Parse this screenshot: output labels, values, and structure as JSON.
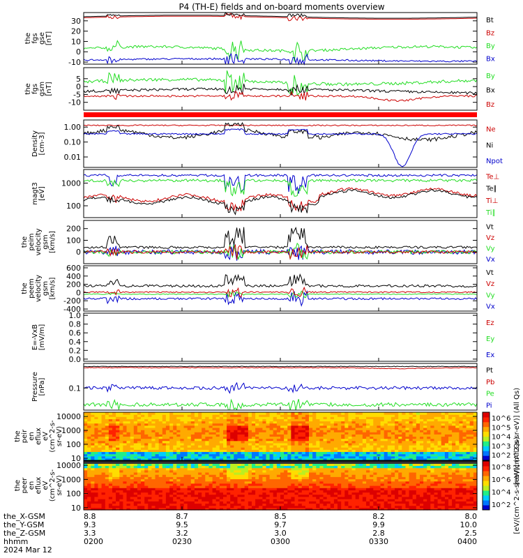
{
  "title": "P4 (TH-E) fields and on-board moments overview",
  "colors": {
    "black": "#000000",
    "red": "#cc0000",
    "green": "#22dd22",
    "blue": "#0000cc",
    "gray": "#aaaaaa"
  },
  "panels": [
    {
      "id": "fgs-gse",
      "ylabel": [
        "the",
        "fgs",
        "gse",
        "[nT]"
      ],
      "ylim": [
        -12,
        38
      ],
      "yticks": [
        "30",
        "20",
        "10",
        "0",
        "-10"
      ],
      "ytick_values": [
        30,
        20,
        10,
        0,
        -10
      ],
      "legend": [
        {
          "name": "Bt",
          "color": "black"
        },
        {
          "name": "Bz",
          "color": "red"
        },
        {
          "name": "By",
          "color": "green"
        },
        {
          "name": "Bx",
          "color": "blue"
        }
      ]
    },
    {
      "id": "fgs-gsm",
      "ylabel": [
        "the",
        "fgs",
        "gsm",
        "[nT]"
      ],
      "ylim": [
        -15,
        12
      ],
      "yticks": [
        "5",
        "0",
        "-5",
        "-10"
      ],
      "ytick_values": [
        5,
        0,
        -5,
        -10
      ],
      "legend": [
        {
          "name": "By",
          "color": "green"
        },
        {
          "name": "Bx",
          "color": "black"
        },
        {
          "name": "Bz",
          "color": "red"
        }
      ]
    },
    {
      "id": "bar",
      "ylabel": [],
      "ylim": [
        0,
        1
      ],
      "yticks": [],
      "ytick_values": [],
      "legend": []
    },
    {
      "id": "density",
      "ylabel": [
        "Density",
        "[cm-3]"
      ],
      "log": true,
      "ylim": [
        0.002,
        3
      ],
      "yticks": [
        "1.00",
        "0.10",
        "0.01"
      ],
      "ytick_values": [
        1,
        0.1,
        0.01
      ],
      "legend": [
        {
          "name": "Ne",
          "color": "red"
        },
        {
          "name": "Ni",
          "color": "black"
        },
        {
          "name": "Npot",
          "color": "blue"
        }
      ]
    },
    {
      "id": "temp",
      "ylabel": [
        "magt3",
        "[eV]"
      ],
      "log": true,
      "ylim": [
        30,
        4000
      ],
      "yticks": [
        "1000",
        "100"
      ],
      "ytick_values": [
        1000,
        100
      ],
      "legend": [
        {
          "name": "Te⊥",
          "color": "red"
        },
        {
          "name": "Te∥",
          "color": "black"
        },
        {
          "name": "Ti⊥",
          "color": "red"
        },
        {
          "name": "Ti∥",
          "color": "green"
        }
      ]
    },
    {
      "id": "peim",
      "ylabel": [
        "the",
        "peim",
        "velocity",
        "gsm",
        "[km/s]"
      ],
      "ylim": [
        -100,
        270
      ],
      "yticks": [
        "200",
        "100",
        "0"
      ],
      "ytick_values": [
        200,
        100,
        0
      ],
      "legend": [
        {
          "name": "Vt",
          "color": "black"
        },
        {
          "name": "Vz",
          "color": "red"
        },
        {
          "name": "Vy",
          "color": "green"
        },
        {
          "name": "Vx",
          "color": "blue"
        }
      ]
    },
    {
      "id": "peem",
      "ylabel": [
        "the",
        "peem",
        "velocity",
        "gsm",
        "[km/s]"
      ],
      "ylim": [
        -450,
        650
      ],
      "yticks": [
        "600",
        "400",
        "200",
        "0",
        "-200",
        "-400"
      ],
      "ytick_values": [
        600,
        400,
        200,
        0,
        -200,
        -400
      ],
      "legend": [
        {
          "name": "Vt",
          "color": "black"
        },
        {
          "name": "Vz",
          "color": "red"
        },
        {
          "name": "Vy",
          "color": "green"
        },
        {
          "name": "Vx",
          "color": "blue"
        }
      ]
    },
    {
      "id": "efield",
      "ylabel": [
        "E=-VxB",
        "[mV/m]"
      ],
      "ylim": [
        -0.05,
        1.05
      ],
      "yticks": [
        "1.0",
        "0.8",
        "0.6",
        "0.4",
        "0.2",
        "0.0"
      ],
      "ytick_values": [
        1,
        0.8,
        0.6,
        0.4,
        0.2,
        0
      ],
      "legend": [
        {
          "name": "Ez",
          "color": "red"
        },
        {
          "name": "Ey",
          "color": "green"
        },
        {
          "name": "Ex",
          "color": "blue"
        }
      ]
    },
    {
      "id": "pressure",
      "ylabel": [
        "Pressure",
        "[nPa]"
      ],
      "log": true,
      "ylim": [
        0.02,
        0.6
      ],
      "yticks": [
        "0.1"
      ],
      "ytick_values": [
        0.1
      ],
      "legend": [
        {
          "name": "Pt",
          "color": "black"
        },
        {
          "name": "Pb",
          "color": "red"
        },
        {
          "name": "Pe",
          "color": "green"
        },
        {
          "name": "Pi",
          "color": "blue"
        }
      ]
    },
    {
      "id": "peir",
      "ylabel": [
        "the",
        "peir",
        "en",
        "eflux",
        "eV",
        "(cm^2-s-",
        "sr-eV)"
      ],
      "log": true,
      "ylim": [
        7,
        20000
      ],
      "yticks": [
        "10000",
        "1000",
        "100",
        "10"
      ],
      "ytick_values": [
        10000,
        1000,
        100,
        10
      ],
      "legend": []
    },
    {
      "id": "peer",
      "ylabel": [
        "the",
        "peer",
        "en",
        "eflux",
        "eV",
        "(cm^2-s-",
        "sr-eV)"
      ],
      "log": true,
      "ylim": [
        7,
        20000
      ],
      "yticks": [
        "10000",
        "1000",
        "100",
        "10"
      ],
      "ytick_values": [
        10000,
        1000,
        100,
        10
      ],
      "legend": []
    }
  ],
  "colorbar_top": {
    "labels": [
      "10^6",
      "10^5",
      "10^4",
      "10^3",
      "10^2"
    ],
    "title": "[eV/(cm^2-s-sr-eV)] (All Qs)"
  },
  "colorbar_bottom": {
    "labels": [
      "10^8",
      "10^6",
      "10^4",
      "10^2"
    ],
    "title": "[eV/(cm^2-s-sr-eV)] (All Qs)"
  },
  "xaxis": {
    "row_labels": [
      "the_X-GSM",
      "the_Y-GSM",
      "the_Z-GSM",
      "hhmm",
      "2024 Mar 12"
    ],
    "ticks": [
      {
        "x": "8.8",
        "y": "9.3",
        "z": "3.3",
        "t": "0200"
      },
      {
        "x": "8.7",
        "y": "9.5",
        "z": "3.2",
        "t": "0230"
      },
      {
        "x": "8.5",
        "y": "9.7",
        "z": "3.0",
        "t": "0300"
      },
      {
        "x": "8.2",
        "y": "9.9",
        "z": "2.8",
        "t": "0330"
      },
      {
        "x": "8.0",
        "y": "10.0",
        "z": "2.5",
        "t": "0400"
      }
    ]
  },
  "chart_data": [
    {
      "type": "line",
      "panel": "fgs-gse",
      "x_range": [
        "02:00",
        "04:00"
      ],
      "series": [
        {
          "name": "Bt",
          "approx": "~33 nT steady"
        },
        {
          "name": "Bz",
          "approx": "~33 nT"
        },
        {
          "name": "By",
          "approx": "~3-5 nT, spikes to 15 near 03:00"
        },
        {
          "name": "Bx",
          "approx": "~-8 nT"
        }
      ]
    },
    {
      "type": "line",
      "panel": "fgs-gsm",
      "series": [
        {
          "name": "By",
          "approx": "~4 nT"
        },
        {
          "name": "Bx",
          "approx": "~-3 nT"
        },
        {
          "name": "Bz",
          "approx": "~-6 nT, dips to -11 near 03:40"
        }
      ]
    },
    {
      "type": "line",
      "panel": "density",
      "log": true,
      "series": [
        {
          "name": "Ne",
          "approx": "~1.2"
        },
        {
          "name": "Ni",
          "approx": "~0.2-1.0"
        },
        {
          "name": "Npot",
          "approx": "~0.3, drops to 0.003 near 03:30"
        }
      ]
    },
    {
      "type": "line",
      "panel": "temp",
      "log": true,
      "series": [
        {
          "name": "Te⊥",
          "approx": "~1800 eV"
        },
        {
          "name": "Ti∥",
          "approx": "~1200 eV"
        },
        {
          "name": "Te∥",
          "approx": "~150-500 eV"
        },
        {
          "name": "Ti⊥",
          "approx": "~150-500 eV"
        }
      ]
    },
    {
      "type": "line",
      "panel": "peim",
      "series": [
        {
          "name": "Vt",
          "approx": "~30 km/s, spikes to 220"
        }
      ]
    },
    {
      "type": "line",
      "panel": "peem",
      "series": [
        {
          "name": "Vt",
          "approx": "~150 km/s"
        },
        {
          "name": "Vx",
          "approx": "~-150 km/s"
        }
      ]
    },
    {
      "type": "line",
      "panel": "pressure",
      "log": true,
      "series": [
        {
          "name": "Pt",
          "approx": "~0.45"
        },
        {
          "name": "Pb",
          "approx": "~0.4"
        },
        {
          "name": "Pi",
          "approx": "~0.1"
        },
        {
          "name": "Pe",
          "approx": "~0.03"
        }
      ]
    },
    {
      "type": "heatmap",
      "panel": "peir",
      "description_values": "energy 10-10000 eV"
    },
    {
      "type": "heatmap",
      "panel": "peer",
      "description_values": "energy 10-10000 eV"
    }
  ]
}
